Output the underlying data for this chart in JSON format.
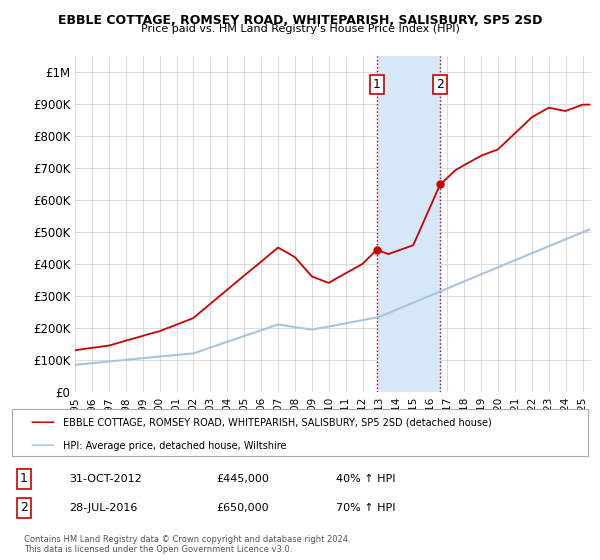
{
  "title": "EBBLE COTTAGE, ROMSEY ROAD, WHITEPARISH, SALISBURY, SP5 2SD",
  "subtitle": "Price paid vs. HM Land Registry's House Price Index (HPI)",
  "ylabel_ticks": [
    "£0",
    "£100K",
    "£200K",
    "£300K",
    "£400K",
    "£500K",
    "£600K",
    "£700K",
    "£800K",
    "£900K",
    "£1M"
  ],
  "ytick_values": [
    0,
    100000,
    200000,
    300000,
    400000,
    500000,
    600000,
    700000,
    800000,
    900000,
    1000000
  ],
  "ylim": [
    0,
    1050000
  ],
  "xlim_start": 1995.0,
  "xlim_end": 2025.5,
  "sale1_x": 2012.833,
  "sale1_y": 445000,
  "sale2_x": 2016.583,
  "sale2_y": 650000,
  "sale1_date": "31-OCT-2012",
  "sale1_price": "£445,000",
  "sale1_hpi": "40% ↑ HPI",
  "sale2_date": "28-JUL-2016",
  "sale2_price": "£650,000",
  "sale2_hpi": "70% ↑ HPI",
  "shade_color": "#d6e8f7",
  "hpi_line_color": "#a8c4e0",
  "price_line_color": "#cc0000",
  "grid_color": "#cccccc",
  "legend_house_label": "EBBLE COTTAGE, ROMSEY ROAD, WHITEPARISH, SALISBURY, SP5 2SD (detached house)",
  "legend_hpi_label": "HPI: Average price, detached house, Wiltshire",
  "footer": "Contains HM Land Registry data © Crown copyright and database right 2024.\nThis data is licensed under the Open Government Licence v3.0.",
  "xtick_years": [
    1995,
    1996,
    1997,
    1998,
    1999,
    2000,
    2001,
    2002,
    2003,
    2004,
    2005,
    2006,
    2007,
    2008,
    2009,
    2010,
    2011,
    2012,
    2013,
    2014,
    2015,
    2016,
    2017,
    2018,
    2019,
    2020,
    2021,
    2022,
    2023,
    2024,
    2025
  ]
}
